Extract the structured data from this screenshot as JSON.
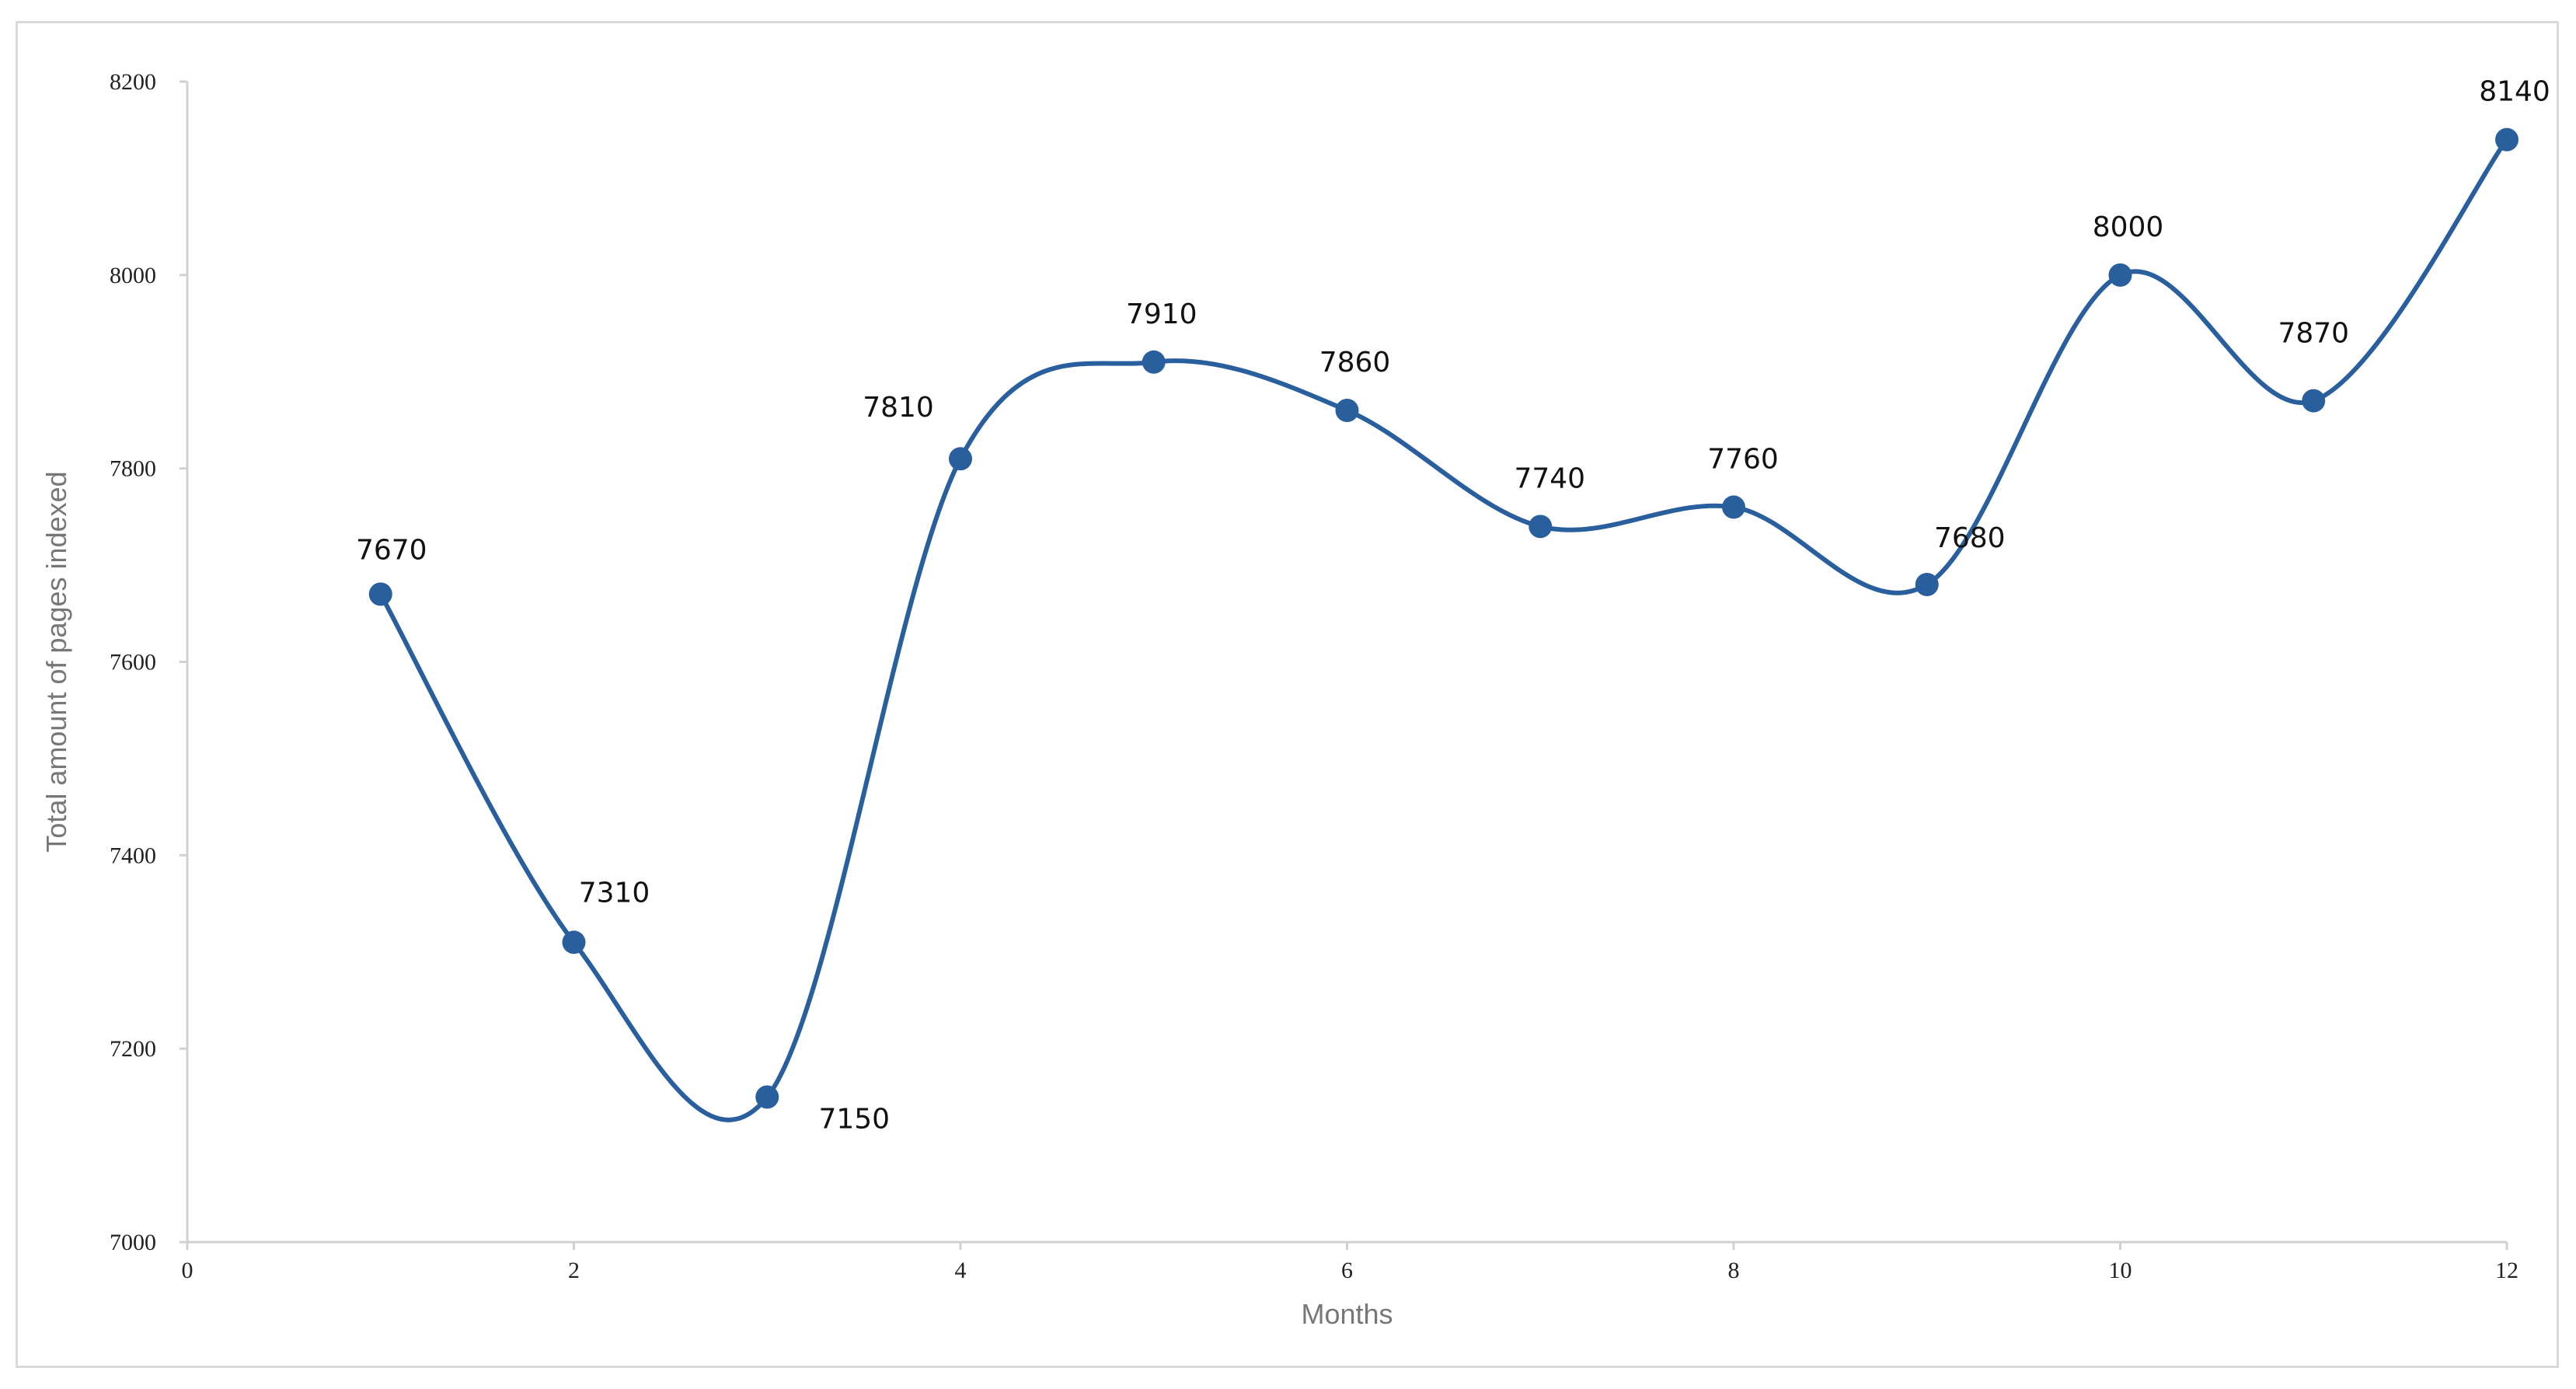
{
  "chart_data": {
    "type": "line",
    "title": "",
    "xlabel": "Months",
    "ylabel": "Total amount of pages indexed",
    "xlim": [
      0,
      12
    ],
    "ylim": [
      7000,
      8200
    ],
    "x_ticks": [
      0,
      2,
      4,
      6,
      8,
      10,
      12
    ],
    "y_ticks": [
      7000,
      7200,
      7400,
      7600,
      7800,
      8000,
      8200
    ],
    "smooth": true,
    "grid": false,
    "legend": "none",
    "series": [
      {
        "x": [
          1,
          2,
          3,
          4,
          5,
          6,
          7,
          8,
          9,
          10,
          11,
          12
        ],
        "values": [
          7670,
          7310,
          7150,
          7810,
          7910,
          7860,
          7740,
          7760,
          7680,
          8000,
          7870,
          8140
        ],
        "color": "#2a5f9e",
        "marker": "circle",
        "data_labels": true
      }
    ],
    "colors": {
      "line": "#2a5f9e",
      "axis": "#d0d0d0",
      "frame": "#d9d9d9"
    }
  }
}
